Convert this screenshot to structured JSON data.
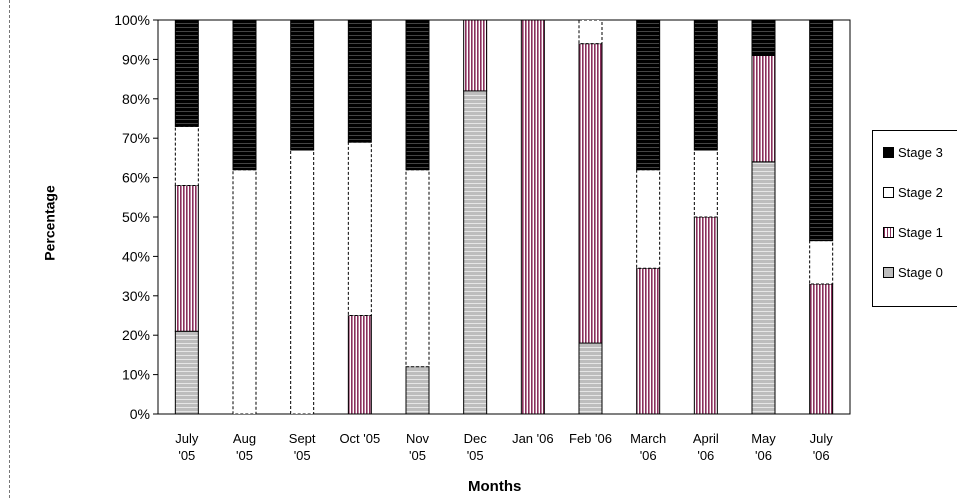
{
  "chart_data": {
    "type": "bar",
    "stacked": true,
    "percent": true,
    "ylabel": "Percentage",
    "xlabel": "Months",
    "ylim": [
      0,
      100
    ],
    "yticks": [
      "0%",
      "10%",
      "20%",
      "30%",
      "40%",
      "50%",
      "60%",
      "70%",
      "80%",
      "90%",
      "100%"
    ],
    "categories": [
      [
        "July",
        "'05"
      ],
      [
        "Aug",
        "'05"
      ],
      [
        "Sept",
        "'05"
      ],
      [
        "Oct '05"
      ],
      [
        "Nov",
        "'05"
      ],
      [
        "Dec",
        "'05"
      ],
      [
        "Jan '06"
      ],
      [
        "Feb '06"
      ],
      [
        "March",
        "'06"
      ],
      [
        "April",
        "'06"
      ],
      [
        "May",
        "'06"
      ],
      [
        "July",
        "'06"
      ]
    ],
    "series": [
      {
        "name": "Stage 0",
        "pattern": "gray",
        "values": [
          21,
          0,
          0,
          0,
          12,
          82,
          0,
          18,
          0,
          0,
          64,
          0
        ]
      },
      {
        "name": "Stage 1",
        "pattern": "hatched",
        "values": [
          37,
          0,
          0,
          25,
          0,
          18,
          100,
          76,
          37,
          50,
          27,
          33
        ]
      },
      {
        "name": "Stage 2",
        "pattern": "white",
        "values": [
          15,
          62,
          67,
          44,
          50,
          0,
          0,
          6,
          25,
          17,
          0,
          11
        ]
      },
      {
        "name": "Stage 3",
        "pattern": "black",
        "values": [
          27,
          38,
          33,
          31,
          38,
          0,
          0,
          0,
          38,
          33,
          9,
          56
        ]
      }
    ],
    "legend": [
      "Stage 3",
      "Stage 2",
      "Stage 1",
      "Stage 0"
    ],
    "legend_position": "right",
    "grid": false
  }
}
